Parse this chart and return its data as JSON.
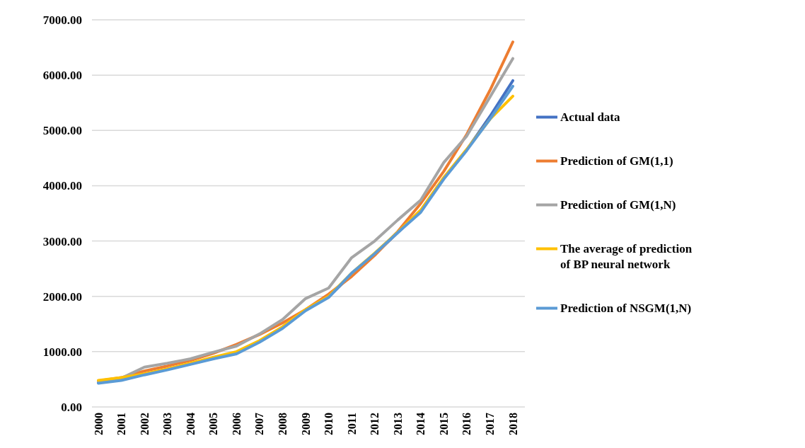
{
  "chart_data": {
    "type": "line",
    "categories": [
      "2000",
      "2001",
      "2002",
      "2003",
      "2004",
      "2005",
      "2006",
      "2007",
      "2008",
      "2009",
      "2010",
      "2011",
      "2012",
      "2013",
      "2014",
      "2015",
      "2016",
      "2017",
      "2018"
    ],
    "series": [
      {
        "name": "Actual data",
        "color": "#4472c4",
        "values": [
          440,
          490,
          590,
          680,
          780,
          880,
          970,
          1180,
          1430,
          1750,
          1990,
          2400,
          2760,
          3150,
          3550,
          4130,
          4650,
          5250,
          5900
        ]
      },
      {
        "name": "Prediction of GM(1,1)",
        "color": "#ed7d31",
        "values": [
          470,
          530,
          650,
          740,
          840,
          970,
          1130,
          1310,
          1520,
          1760,
          2040,
          2360,
          2740,
          3170,
          3680,
          4260,
          4930,
          5720,
          6600
        ]
      },
      {
        "name": "Prediction of GM(1,N)",
        "color": "#a5a5a5",
        "values": [
          460,
          520,
          720,
          790,
          870,
          990,
          1100,
          1320,
          1580,
          1960,
          2150,
          2700,
          3000,
          3380,
          3740,
          4420,
          4900,
          5600,
          6300
        ]
      },
      {
        "name": "The average of prediction of BP neural network",
        "color": "#ffc000",
        "values": [
          480,
          530,
          600,
          690,
          790,
          900,
          1000,
          1200,
          1450,
          1760,
          2000,
          2420,
          2780,
          3160,
          3560,
          4150,
          4660,
          5200,
          5620
        ]
      },
      {
        "name": "Prediction of NSGM(1,N)",
        "color": "#5b9bd5",
        "values": [
          430,
          480,
          580,
          670,
          770,
          870,
          960,
          1170,
          1420,
          1740,
          1980,
          2420,
          2770,
          3150,
          3520,
          4120,
          4640,
          5200,
          5800
        ]
      }
    ],
    "ylim": [
      0,
      7000
    ],
    "yticks": [
      {
        "value": 0,
        "label": "0.00"
      },
      {
        "value": 1000,
        "label": "1000.00"
      },
      {
        "value": 2000,
        "label": "2000.00"
      },
      {
        "value": 3000,
        "label": "3000.00"
      },
      {
        "value": 4000,
        "label": "4000.00"
      },
      {
        "value": 5000,
        "label": "5000.00"
      },
      {
        "value": 6000,
        "label": "6000.00"
      },
      {
        "value": 7000,
        "label": "7000.00"
      }
    ],
    "grid": "y",
    "legend": "right",
    "marker": "none",
    "line_style": "solid"
  }
}
